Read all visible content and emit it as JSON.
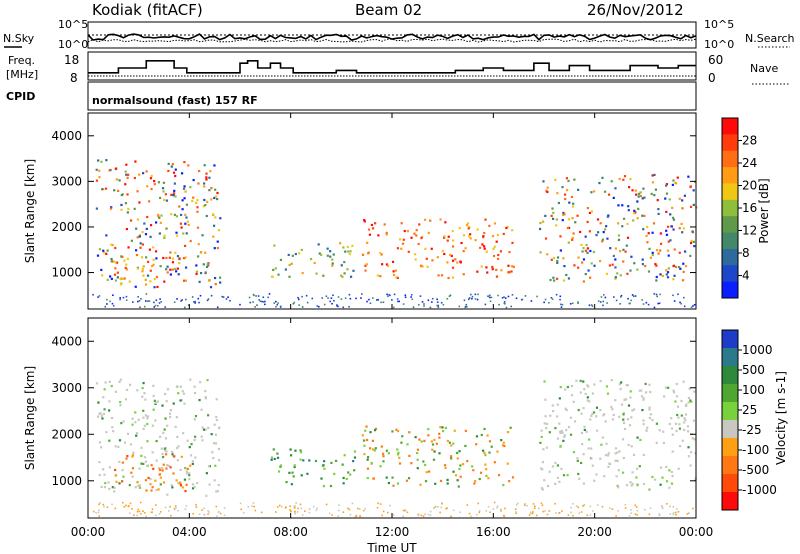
{
  "header": {
    "station": "Kodiak (fitACF)",
    "beam": "Beam 02",
    "date": "26/Nov/2012"
  },
  "sky_panel": {
    "left_label": "N.Sky",
    "right_label": "N.Search",
    "left_ticks": [
      "10^5",
      "10^0"
    ],
    "right_ticks": [
      "10^5",
      "10^0"
    ]
  },
  "freq_panel": {
    "left_label_line1": "Freq.",
    "left_label_line2": "[MHz]",
    "right_label": "Nave",
    "left_ticks": [
      "18",
      "8"
    ],
    "right_ticks": [
      "60",
      "0"
    ]
  },
  "cpid_panel": {
    "label": "CPID",
    "mode_text": "normalsound (fast) 157 RF"
  },
  "x_axis": {
    "ticks": [
      "00:00",
      "04:00",
      "08:00",
      "12:00",
      "16:00",
      "20:00",
      "00:00"
    ],
    "hours": [
      0,
      4,
      8,
      12,
      16,
      20,
      24
    ],
    "label": "Time UT"
  },
  "chart_data": [
    {
      "type": "heatmap",
      "name": "power",
      "ylabel": "Slant Range [km]",
      "xlim": [
        0,
        24
      ],
      "ylim": [
        200,
        4500
      ],
      "yticks": [
        1000,
        2000,
        3000,
        4000
      ],
      "colorbar": {
        "label": "Power [dB]",
        "ticks": [
          "28",
          "24",
          "20",
          "16",
          "12",
          "8",
          "4"
        ],
        "colors": [
          "#0a1eff",
          "#1e46c8",
          "#2f6a9c",
          "#44886a",
          "#5f9a4a",
          "#8fbf3a",
          "#f0c814",
          "#ff9c14",
          "#ff6e14",
          "#ff3c0a",
          "#ff0a0a"
        ]
      },
      "echo_regions": [
        {
          "t0": 0.3,
          "t1": 5.2,
          "r0": 700,
          "r1": 3500,
          "level": "mixed-high"
        },
        {
          "t0": 1.0,
          "t1": 4.0,
          "r0": 800,
          "r1": 1600,
          "level": "high"
        },
        {
          "t0": 7.2,
          "t1": 10.5,
          "r0": 900,
          "r1": 1700,
          "level": "medium"
        },
        {
          "t0": 10.8,
          "t1": 16.8,
          "r0": 900,
          "r1": 2200,
          "level": "high"
        },
        {
          "t0": 17.8,
          "t1": 24.0,
          "r0": 800,
          "r1": 3200,
          "level": "mixed-high"
        }
      ]
    },
    {
      "type": "heatmap",
      "name": "velocity",
      "ylabel": "Slant Range [km]",
      "xlim": [
        0,
        24
      ],
      "ylim": [
        200,
        4500
      ],
      "yticks": [
        1000,
        2000,
        3000,
        4000
      ],
      "colorbar": {
        "label": "Velocity [m s-1]",
        "ticks": [
          "1000",
          "500",
          "100",
          "25",
          "-25",
          "-100",
          "-500",
          "-1000"
        ],
        "colors": [
          "#1e3cc8",
          "#2a7a8c",
          "#2e8a3a",
          "#4fa630",
          "#78d23c",
          "#c8c8c0",
          "#ffa014",
          "#ff7814",
          "#ff4a0a",
          "#ff0a0a"
        ]
      },
      "echo_regions": [
        {
          "t0": 0.3,
          "t1": 5.2,
          "r0": 700,
          "r1": 3200,
          "level": "ground-scatter"
        },
        {
          "t0": 1.0,
          "t1": 4.0,
          "r0": 800,
          "r1": 1600,
          "level": "negative"
        },
        {
          "t0": 7.2,
          "t1": 10.5,
          "r0": 900,
          "r1": 1700,
          "level": "positive"
        },
        {
          "t0": 10.8,
          "t1": 16.8,
          "r0": 900,
          "r1": 2200,
          "level": "mixed"
        },
        {
          "t0": 17.8,
          "t1": 24.0,
          "r0": 800,
          "r1": 3200,
          "level": "ground-scatter"
        }
      ]
    }
  ]
}
